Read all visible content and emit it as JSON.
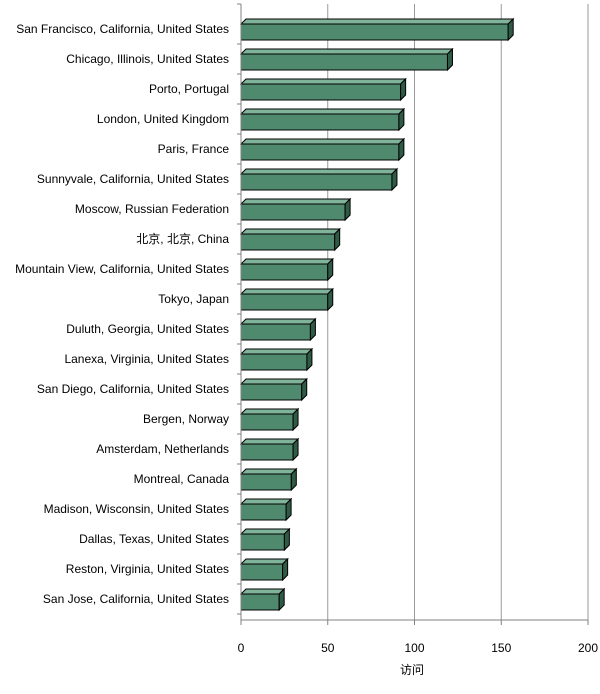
{
  "chart_data": {
    "type": "bar",
    "orientation": "horizontal",
    "categories": [
      "San Francisco, California, United States",
      "Chicago, Illinois, United States",
      "Porto, Portugal",
      "London, United Kingdom",
      "Paris, France",
      "Sunnyvale, California, United States",
      "Moscow, Russian Federation",
      "北京, 北京, China",
      "Mountain View, California, United States",
      "Tokyo, Japan",
      "Duluth, Georgia, United States",
      "Lanexa, Virginia, United States",
      "San Diego, California, United States",
      "Bergen, Norway",
      "Amsterdam, Netherlands",
      "Montreal, Canada",
      "Madison, Wisconsin, United States",
      "Dallas, Texas, United States",
      "Reston, Virginia, United States",
      "San Jose, California, United States"
    ],
    "values": [
      154,
      119,
      92,
      91,
      91,
      87,
      60,
      54,
      50,
      50,
      40,
      38,
      35,
      30,
      30,
      29,
      26,
      25,
      24,
      22
    ],
    "xlabel": "访问",
    "ylabel": "",
    "title": "",
    "xlim": [
      0,
      200
    ],
    "xticks": [
      0,
      50,
      100,
      150,
      200
    ],
    "grid": true,
    "legend": "none",
    "bar_color": "#4f8a6f",
    "bar_top_color": "#7fb39a",
    "bar_side_color": "#2f5a46"
  }
}
